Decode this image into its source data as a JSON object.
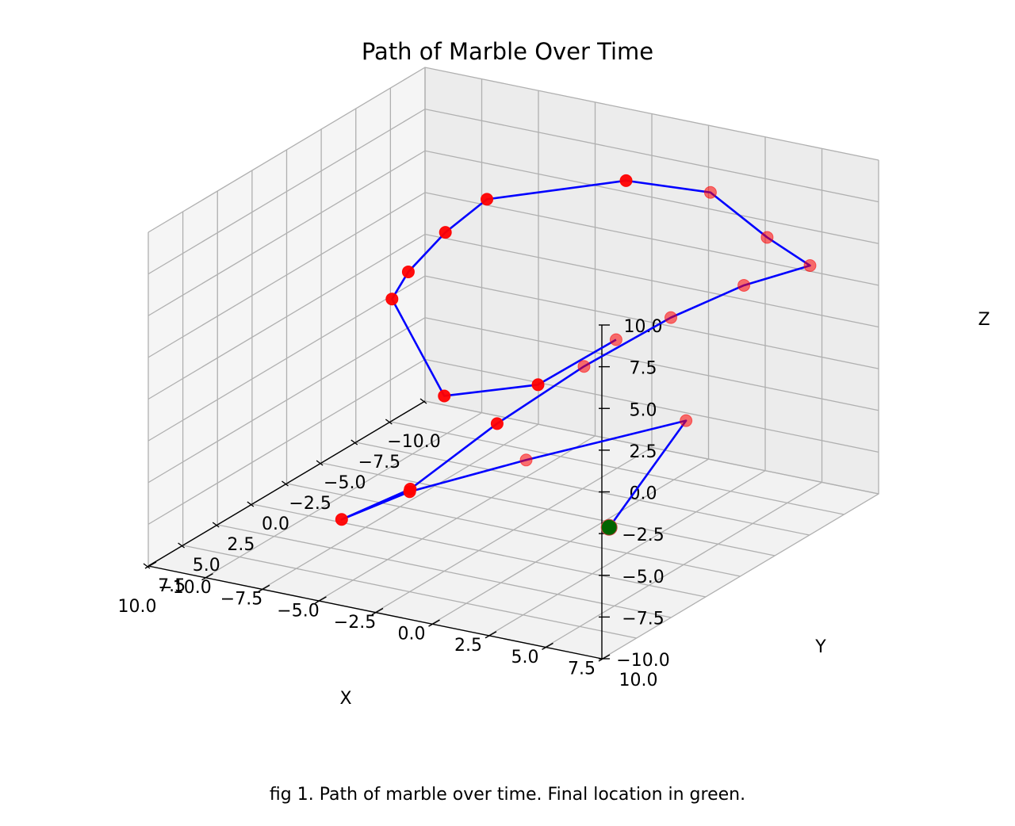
{
  "caption": "fig 1. Path of marble over time. Final location in green.",
  "chart_data": {
    "type": "line3d",
    "title": "Path of Marble Over Time",
    "xlabel": "X",
    "ylabel": "Y",
    "zlabel": "Z",
    "xlim": [
      -10,
      10
    ],
    "ylim": [
      -10,
      10
    ],
    "zlim": [
      -10,
      10
    ],
    "x_ticks": [
      "−10.0",
      "−7.5",
      "−5.0",
      "−2.5",
      "0.0",
      "2.5",
      "5.0",
      "7.5",
      "10.0"
    ],
    "y_ticks": [
      "−10.0",
      "−7.5",
      "−5.0",
      "−2.5",
      "0.0",
      "2.5",
      "5.0",
      "7.5",
      "10.0"
    ],
    "z_ticks": [
      "−10.0",
      "−7.5",
      "−5.0",
      "−2.5",
      "0.0",
      "2.5",
      "5.0",
      "7.5",
      "10.0"
    ],
    "grid": true,
    "line_color": "#0000ff",
    "marker_color": "#ff0000",
    "final_marker_color": "#006400",
    "points": [
      {
        "x": -2.5,
        "y": 3.0,
        "z": 1.0
      },
      {
        "x": 1.5,
        "y": 2.0,
        "z": 0.0
      },
      {
        "x": 5.0,
        "y": 0.0,
        "z": 0.5
      },
      {
        "x": 5.5,
        "y": -2.0,
        "z": 6.0
      },
      {
        "x": 3.5,
        "y": -2.5,
        "z": 6.5
      },
      {
        "x": 0.0,
        "y": -3.0,
        "z": 7.0
      },
      {
        "x": -3.0,
        "y": -3.0,
        "z": 7.5
      },
      {
        "x": -6.5,
        "y": 1.0,
        "z": 8.0
      },
      {
        "x": -8.5,
        "y": 3.5,
        "z": 7.0
      },
      {
        "x": -8.5,
        "y": 6.0,
        "z": 5.0
      },
      {
        "x": -7.5,
        "y": 8.5,
        "z": 4.5
      },
      {
        "x": -6.0,
        "y": 6.5,
        "z": 3.5
      },
      {
        "x": -4.0,
        "y": 4.5,
        "z": 2.0
      },
      {
        "x": -1.0,
        "y": 2.5,
        "z": 0.0
      },
      {
        "x": 2.0,
        "y": 0.5,
        "z": -2.5
      },
      {
        "x": 5.0,
        "y": -1.5,
        "z": -5.5
      },
      {
        "x": 7.5,
        "y": -3.0,
        "z": -6.5
      },
      {
        "x": 7.5,
        "y": 0.0,
        "z": -4.0
      },
      {
        "x": 4.0,
        "y": 3.0,
        "z": -3.0
      },
      {
        "x": -1.0,
        "y": 7.0,
        "z": -2.0
      },
      {
        "x": -2.0,
        "y": 3.0,
        "z": -10.0
      }
    ]
  }
}
